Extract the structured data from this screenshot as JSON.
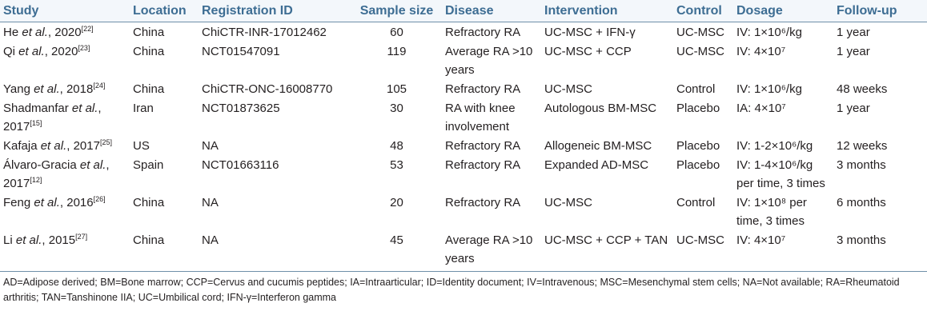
{
  "table": {
    "header": [
      "Study",
      "Location",
      "Registration ID",
      "Sample size",
      "Disease",
      "Intervention",
      "Control",
      "Dosage",
      "Follow-up"
    ],
    "rows": [
      {
        "study": {
          "name": "He",
          "etal": "et al.",
          "year": ", 2020",
          "ref": "[22]"
        },
        "location": "China",
        "registration_id": "ChiCTR-INR-17012462",
        "sample_size": 60,
        "disease": "Refractory RA",
        "intervention": "UC-MSC + IFN-γ",
        "control": "UC-MSC",
        "dosage": "IV: 1×10⁶/kg",
        "follow_up": "1 year"
      },
      {
        "study": {
          "name": "Qi",
          "etal": "et al.",
          "year": ", 2020",
          "ref": "[23]"
        },
        "location": "China",
        "registration_id": "NCT01547091",
        "sample_size": 119,
        "disease": "Average RA >10 years",
        "intervention": "UC-MSC + CCP",
        "control": "UC-MSC",
        "dosage": "IV: 4×10⁷",
        "follow_up": "1 year"
      },
      {
        "study": {
          "name": "Yang",
          "etal": "et al.",
          "year": ", 2018",
          "ref": "[24]"
        },
        "location": "China",
        "registration_id": "ChiCTR-ONC-16008770",
        "sample_size": 105,
        "disease": "Refractory RA",
        "intervention": "UC-MSC",
        "control": "Control",
        "dosage": "IV: 1×10⁶/kg",
        "follow_up": "48 weeks"
      },
      {
        "study": {
          "name": "Shadmanfar",
          "etal": "et al.",
          "year": ", 2017",
          "ref": "[15]"
        },
        "location": "Iran",
        "registration_id": "NCT01873625",
        "sample_size": 30,
        "disease": "RA with knee involvement",
        "intervention": "Autologous BM-MSC",
        "control": "Placebo",
        "dosage": "IA: 4×10⁷",
        "follow_up": "1 year"
      },
      {
        "study": {
          "name": "Kafaja",
          "etal": "et al.",
          "year": ", 2017",
          "ref": "[25]"
        },
        "location": "US",
        "registration_id": "NA",
        "sample_size": 48,
        "disease": "Refractory RA",
        "intervention": "Allogeneic BM-MSC",
        "control": "Placebo",
        "dosage": "IV: 1‑2×10⁶/kg",
        "follow_up": "12 weeks"
      },
      {
        "study": {
          "name": "Álvaro-Gracia",
          "etal": "et al.",
          "year": ", 2017",
          "ref": "[12]"
        },
        "location": "Spain",
        "registration_id": "NCT01663116",
        "sample_size": 53,
        "disease": "Refractory RA",
        "intervention": "Expanded AD-MSC",
        "control": "Placebo",
        "dosage": "IV: 1‑4×10⁶/kg per time, 3 times",
        "follow_up": "3 months"
      },
      {
        "study": {
          "name": "Feng",
          "etal": "et al.",
          "year": ", 2016",
          "ref": "[26]"
        },
        "location": "China",
        "registration_id": "NA",
        "sample_size": 20,
        "disease": "Refractory RA",
        "intervention": "UC-MSC",
        "control": "Control",
        "dosage": "IV: 1×10⁸ per time, 3 times",
        "follow_up": "6 months"
      },
      {
        "study": {
          "name": "Li",
          "etal": "et al.",
          "year": ", 2015",
          "ref": "[27]"
        },
        "location": "China",
        "registration_id": "NA",
        "sample_size": 45,
        "disease": "Average RA >10 years",
        "intervention": "UC-MSC + CCP + TAN",
        "control": "UC-MSC",
        "dosage": "IV: 4×10⁷",
        "follow_up": "3 months"
      }
    ],
    "footnote": "AD=Adipose derived; BM=Bone marrow; CCP=Cervus and cucumis peptides; IA=Intraarticular; ID=Identity document; IV=Intravenous; MSC=Mesenchymal stem cells; NA=Not available; RA=Rheumatoid arthritis; TAN=Tanshinone IIA; UC=Umbilical cord; IFN-γ=Interferon gamma"
  }
}
